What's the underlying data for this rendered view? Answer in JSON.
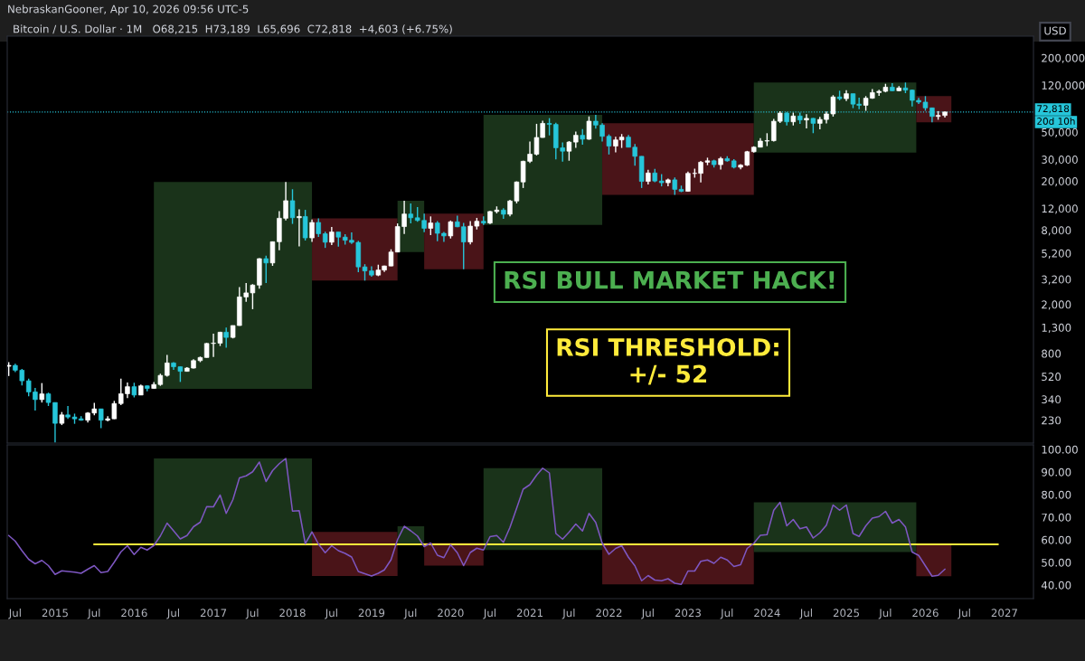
{
  "chart_data": [
    {
      "type": "candlestick",
      "title": "Bitcoin / U.S. Dollar · 1M   O68,215  H73,189  L65,696  C72,818  +4,603 (+6.75%)",
      "log": true,
      "tick_labels": "y",
      "annotations": [
        "NebraskanGooner, Apr 10, 2026 09:56 UTC-5",
        "RSI BULL MARKET HACK!",
        "RSI THRESHOLD:\n+/- 52",
        "USD",
        "20d 10h"
      ],
      "x": [
        "2014-06",
        "2014-07",
        "2014-08",
        "2014-09",
        "2014-10",
        "2014-11",
        "2014-12",
        "2015-01",
        "2015-02",
        "2015-03",
        "2015-04",
        "2015-05",
        "2015-06",
        "2015-07",
        "2015-08",
        "2015-09",
        "2015-10",
        "2015-11",
        "2015-12",
        "2016-01",
        "2016-02",
        "2016-03",
        "2016-04",
        "2016-05",
        "2016-06",
        "2016-07",
        "2016-08",
        "2016-09",
        "2016-10",
        "2016-11",
        "2016-12",
        "2017-01",
        "2017-02",
        "2017-03",
        "2017-04",
        "2017-05",
        "2017-06",
        "2017-07",
        "2017-08",
        "2017-09",
        "2017-10",
        "2017-11",
        "2017-12",
        "2018-01",
        "2018-02",
        "2018-03",
        "2018-04",
        "2018-05",
        "2018-06",
        "2018-07",
        "2018-08",
        "2018-09",
        "2018-10",
        "2018-11",
        "2018-12",
        "2019-01",
        "2019-02",
        "2019-03",
        "2019-04",
        "2019-05",
        "2019-06",
        "2019-07",
        "2019-08",
        "2019-09",
        "2019-10",
        "2019-11",
        "2019-12",
        "2020-01",
        "2020-02",
        "2020-03",
        "2020-04",
        "2020-05",
        "2020-06",
        "2020-07",
        "2020-08",
        "2020-09",
        "2020-10",
        "2020-11",
        "2020-12",
        "2021-01",
        "2021-02",
        "2021-03",
        "2021-04",
        "2021-05",
        "2021-06",
        "2021-07",
        "2021-08",
        "2021-09",
        "2021-10",
        "2021-11",
        "2021-12",
        "2022-01",
        "2022-02",
        "2022-03",
        "2022-04",
        "2022-05",
        "2022-06",
        "2022-07",
        "2022-08",
        "2022-09",
        "2022-10",
        "2022-11",
        "2022-12",
        "2023-01",
        "2023-02",
        "2023-03",
        "2023-04",
        "2023-05",
        "2023-06",
        "2023-07",
        "2023-08",
        "2023-09",
        "2023-10",
        "2023-11",
        "2023-12",
        "2024-01",
        "2024-02",
        "2024-03",
        "2024-04",
        "2024-05",
        "2024-06",
        "2024-07",
        "2024-08",
        "2024-09",
        "2024-10",
        "2024-11",
        "2024-12",
        "2025-01",
        "2025-02",
        "2025-03",
        "2025-04",
        "2025-05",
        "2025-06",
        "2025-07",
        "2025-08",
        "2025-09",
        "2025-10",
        "2025-11",
        "2025-12",
        "2026-01",
        "2026-02",
        "2026-03",
        "2026-04"
      ],
      "ohlc": [
        [
          630,
          680,
          525,
          640
        ],
        [
          640,
          660,
          565,
          585
        ],
        [
          585,
          600,
          440,
          480
        ],
        [
          480,
          500,
          360,
          390
        ],
        [
          390,
          420,
          275,
          338
        ],
        [
          338,
          460,
          320,
          376
        ],
        [
          376,
          385,
          300,
          320
        ],
        [
          320,
          320,
          152,
          217
        ],
        [
          217,
          268,
          210,
          254
        ],
        [
          254,
          300,
          236,
          244
        ],
        [
          244,
          260,
          215,
          236
        ],
        [
          236,
          248,
          228,
          230
        ],
        [
          230,
          268,
          220,
          263
        ],
        [
          263,
          318,
          252,
          284
        ],
        [
          284,
          285,
          198,
          230
        ],
        [
          230,
          248,
          225,
          236
        ],
        [
          236,
          330,
          235,
          314
        ],
        [
          314,
          500,
          305,
          377
        ],
        [
          377,
          465,
          348,
          430
        ],
        [
          430,
          463,
          352,
          368
        ],
        [
          368,
          448,
          367,
          437
        ],
        [
          437,
          440,
          394,
          416
        ],
        [
          416,
          470,
          413,
          448
        ],
        [
          448,
          548,
          437,
          531
        ],
        [
          531,
          780,
          520,
          670
        ],
        [
          670,
          680,
          590,
          624
        ],
        [
          624,
          626,
          470,
          573
        ],
        [
          573,
          620,
          570,
          609
        ],
        [
          609,
          720,
          605,
          700
        ],
        [
          700,
          755,
          680,
          742
        ],
        [
          742,
          974,
          740,
          964
        ],
        [
          964,
          1160,
          750,
          970
        ],
        [
          970,
          1200,
          920,
          1190
        ],
        [
          1190,
          1300,
          890,
          1080
        ],
        [
          1080,
          1350,
          1060,
          1348
        ],
        [
          1348,
          2760,
          1340,
          2300
        ],
        [
          2300,
          2980,
          2100,
          2480
        ],
        [
          2480,
          2920,
          1830,
          2870
        ],
        [
          2870,
          4740,
          2680,
          4700
        ],
        [
          4700,
          4980,
          2980,
          4340
        ],
        [
          4340,
          6470,
          4110,
          6450
        ],
        [
          6450,
          11400,
          5500,
          10000
        ],
        [
          10000,
          19666,
          9600,
          13880
        ],
        [
          13880,
          17200,
          9000,
          10100
        ],
        [
          10100,
          11800,
          5920,
          10330
        ],
        [
          10330,
          11700,
          6600,
          6930
        ],
        [
          6930,
          9770,
          6430,
          9240
        ],
        [
          9240,
          9990,
          7050,
          7490
        ],
        [
          7490,
          7780,
          5750,
          6390
        ],
        [
          6390,
          8500,
          6070,
          7730
        ],
        [
          7730,
          7760,
          5880,
          7030
        ],
        [
          7030,
          7410,
          6110,
          6630
        ],
        [
          6630,
          7680,
          6200,
          6370
        ],
        [
          6370,
          6550,
          3650,
          4030
        ],
        [
          4030,
          4240,
          3120,
          3740
        ],
        [
          3740,
          4070,
          3350,
          3460
        ],
        [
          3460,
          4200,
          3390,
          3800
        ],
        [
          3800,
          4130,
          3670,
          4100
        ],
        [
          4100,
          5600,
          4080,
          5320
        ],
        [
          5320,
          9080,
          5320,
          8560
        ],
        [
          8560,
          13880,
          7470,
          10820
        ],
        [
          10820,
          13200,
          9080,
          10090
        ],
        [
          10090,
          12330,
          9350,
          9600
        ],
        [
          9600,
          10920,
          7710,
          8290
        ],
        [
          8290,
          10350,
          7300,
          9150
        ],
        [
          9150,
          9500,
          6500,
          7550
        ],
        [
          7550,
          7750,
          6430,
          7190
        ],
        [
          7190,
          9580,
          6850,
          9350
        ],
        [
          9350,
          10500,
          8450,
          8530
        ],
        [
          8530,
          9180,
          3850,
          6420
        ],
        [
          6420,
          9470,
          6150,
          8630
        ],
        [
          8630,
          10070,
          8110,
          9450
        ],
        [
          9450,
          10380,
          8840,
          9140
        ],
        [
          9140,
          11450,
          8980,
          11340
        ],
        [
          11340,
          12480,
          10950,
          11650
        ],
        [
          11650,
          12090,
          9880,
          10780
        ],
        [
          10780,
          14100,
          10380,
          13800
        ],
        [
          13800,
          19900,
          13200,
          19700
        ],
        [
          19700,
          29300,
          17600,
          28990
        ],
        [
          28990,
          42000,
          28100,
          33100
        ],
        [
          33100,
          58350,
          32300,
          45200
        ],
        [
          45200,
          61800,
          45000,
          58800
        ],
        [
          58800,
          64900,
          47000,
          57700
        ],
        [
          57700,
          59600,
          30000,
          37300
        ],
        [
          37300,
          41300,
          28800,
          35000
        ],
        [
          35000,
          42300,
          29300,
          41500
        ],
        [
          41500,
          50500,
          37300,
          47100
        ],
        [
          47100,
          52900,
          39600,
          43800
        ],
        [
          43800,
          67000,
          43300,
          61300
        ],
        [
          61300,
          69000,
          53300,
          57000
        ],
        [
          57000,
          59100,
          42000,
          46200
        ],
        [
          46200,
          47900,
          32900,
          38500
        ],
        [
          38500,
          45800,
          34300,
          43200
        ],
        [
          43200,
          48200,
          37200,
          45500
        ],
        [
          45500,
          47400,
          37700,
          37700
        ],
        [
          37700,
          40000,
          26700,
          31800
        ],
        [
          31800,
          31900,
          17600,
          19900
        ],
        [
          19900,
          24700,
          18800,
          23300
        ],
        [
          23300,
          25200,
          19600,
          20050
        ],
        [
          20050,
          22800,
          18150,
          19420
        ],
        [
          19420,
          21000,
          18200,
          20490
        ],
        [
          20490,
          21450,
          15500,
          17160
        ],
        [
          17160,
          18400,
          16300,
          16540
        ],
        [
          16540,
          23950,
          16500,
          23120
        ],
        [
          23120,
          25250,
          21350,
          23140
        ],
        [
          23140,
          29200,
          19550,
          28470
        ],
        [
          28470,
          31000,
          26950,
          29240
        ],
        [
          29240,
          29850,
          25800,
          27220
        ],
        [
          27220,
          31400,
          24800,
          30470
        ],
        [
          30470,
          31800,
          28850,
          29230
        ],
        [
          29230,
          30200,
          25400,
          25930
        ],
        [
          25930,
          27500,
          24900,
          26960
        ],
        [
          26960,
          35200,
          26550,
          34650
        ],
        [
          34650,
          38400,
          34100,
          37720
        ],
        [
          37720,
          44700,
          37600,
          42280
        ],
        [
          42280,
          48970,
          38500,
          42580
        ],
        [
          42580,
          64000,
          41900,
          61200
        ],
        [
          61200,
          73800,
          59300,
          71300
        ],
        [
          71300,
          72800,
          56500,
          60600
        ],
        [
          60600,
          71900,
          56600,
          67500
        ],
        [
          67500,
          72000,
          58400,
          62700
        ],
        [
          62700,
          70000,
          53500,
          64600
        ],
        [
          64600,
          65100,
          49000,
          58900
        ],
        [
          58900,
          66500,
          52600,
          63300
        ],
        [
          63300,
          73600,
          58900,
          70200
        ],
        [
          70200,
          99600,
          66800,
          96400
        ],
        [
          96400,
          108300,
          90500,
          93400
        ],
        [
          93400,
          109400,
          89200,
          102400
        ],
        [
          102400,
          102500,
          78200,
          84300
        ],
        [
          84300,
          95000,
          76600,
          82500
        ],
        [
          82500,
          97900,
          74400,
          94200
        ],
        [
          94200,
          111900,
          93300,
          104600
        ],
        [
          104600,
          110500,
          98200,
          107100
        ],
        [
          107100,
          123200,
          105100,
          115700
        ],
        [
          115700,
          124400,
          107300,
          108200
        ],
        [
          108200,
          117900,
          107200,
          114000
        ],
        [
          114000,
          126200,
          103500,
          109500
        ],
        [
          109500,
          110600,
          80600,
          90400
        ],
        [
          90400,
          94600,
          84400,
          87500
        ],
        [
          87500,
          97900,
          74500,
          78600
        ],
        [
          78600,
          79000,
          60000,
          67000
        ],
        [
          67000,
          74000,
          63000,
          68215
        ],
        [
          68215,
          73189,
          65696,
          72818
        ]
      ],
      "colors": [
        "#ffffff",
        "#26c6da",
        "#26c6da",
        "#26c6da",
        "#26c6da",
        "#ffffff",
        "#26c6da",
        "#26c6da",
        "#ffffff",
        "#26c6da",
        "#26c6da",
        "#26c6da",
        "#ffffff",
        "#ffffff",
        "#26c6da",
        "#ffffff",
        "#ffffff",
        "#ffffff",
        "#ffffff",
        "#26c6da",
        "#ffffff",
        "#26c6da",
        "#ffffff",
        "#ffffff",
        "#ffffff",
        "#26c6da",
        "#26c6da",
        "#ffffff",
        "#ffffff",
        "#ffffff",
        "#ffffff",
        "#ffffff",
        "#ffffff",
        "#26c6da",
        "#ffffff",
        "#ffffff",
        "#ffffff",
        "#ffffff",
        "#ffffff",
        "#26c6da",
        "#ffffff",
        "#ffffff",
        "#ffffff",
        "#26c6da",
        "#ffffff",
        "#26c6da",
        "#ffffff",
        "#26c6da",
        "#26c6da",
        "#ffffff",
        "#26c6da",
        "#26c6da",
        "#26c6da",
        "#26c6da",
        "#26c6da",
        "#26c6da",
        "#ffffff",
        "#ffffff",
        "#ffffff",
        "#ffffff",
        "#ffffff",
        "#26c6da",
        "#26c6da",
        "#26c6da",
        "#ffffff",
        "#26c6da",
        "#26c6da",
        "#ffffff",
        "#26c6da",
        "#26c6da",
        "#ffffff",
        "#ffffff",
        "#26c6da",
        "#ffffff",
        "#ffffff",
        "#26c6da",
        "#ffffff",
        "#ffffff",
        "#ffffff",
        "#ffffff",
        "#ffffff",
        "#ffffff",
        "#26c6da",
        "#26c6da",
        "#26c6da",
        "#ffffff",
        "#ffffff",
        "#26c6da",
        "#ffffff",
        "#26c6da",
        "#26c6da",
        "#26c6da",
        "#ffffff",
        "#ffffff",
        "#26c6da",
        "#26c6da",
        "#26c6da",
        "#ffffff",
        "#26c6da",
        "#26c6da",
        "#ffffff",
        "#26c6da",
        "#26c6da",
        "#ffffff",
        "#ffffff",
        "#ffffff",
        "#ffffff",
        "#26c6da",
        "#ffffff",
        "#26c6da",
        "#26c6da",
        "#ffffff",
        "#ffffff",
        "#ffffff",
        "#ffffff",
        "#ffffff",
        "#ffffff",
        "#ffffff",
        "#26c6da",
        "#ffffff",
        "#26c6da",
        "#ffffff",
        "#26c6da",
        "#ffffff",
        "#ffffff",
        "#ffffff",
        "#26c6da",
        "#ffffff",
        "#26c6da",
        "#26c6da",
        "#ffffff",
        "#ffffff",
        "#ffffff",
        "#ffffff",
        "#26c6da",
        "#ffffff",
        "#26c6da",
        "#26c6da",
        "#26c6da",
        "#26c6da",
        "#26c6da",
        "#ffffff",
        "#ffffff"
      ],
      "xlim": [
        "2014-05-25",
        "2027-05-15"
      ],
      "ylim": [
        150,
        300000
      ],
      "yticks": [
        230,
        340,
        520,
        800,
        {
          "value": 1300,
          "label": "1,300"
        },
        {
          "value": 2000,
          "label": "2,000"
        },
        {
          "value": 3200,
          "label": "3,200"
        },
        {
          "value": 5200,
          "label": "5,200"
        },
        {
          "value": 8000,
          "label": "8,000"
        },
        {
          "value": 12000,
          "label": "12,000"
        },
        {
          "value": 20000,
          "label": "20,000"
        },
        {
          "value": 30000,
          "label": "30,000"
        },
        {
          "value": 50000,
          "label": "50,000"
        },
        {
          "value": 120000,
          "label": "120,000"
        },
        {
          "value": 200000,
          "label": "200,000"
        }
      ],
      "ref_lines": [
        {
          "axis": "y",
          "value": 72818,
          "label": "72,818",
          "color": "#26c6da",
          "line_style": "dotted"
        }
      ],
      "bands": [
        {
          "axis": "x",
          "from": "2016-04",
          "to": "2018-04",
          "color": "#1a331a"
        },
        {
          "axis": "x",
          "from": "2018-04",
          "to": "2019-05",
          "color": "#4a1418"
        },
        {
          "axis": "x",
          "from": "2019-05",
          "to": "2019-09",
          "color": "#1a331a"
        },
        {
          "axis": "x",
          "from": "2019-09",
          "to": "2020-06",
          "color": "#4a1418"
        },
        {
          "axis": "x",
          "from": "2020-06",
          "to": "2021-12",
          "color": "#1a331a"
        },
        {
          "axis": "x",
          "from": "2021-12",
          "to": "2023-11",
          "color": "#4a1418"
        },
        {
          "axis": "x",
          "from": "2023-11",
          "to": "2025-11-20",
          "color": "#1a331a"
        },
        {
          "axis": "x",
          "from": "2025-11-20",
          "to": "2026-05",
          "color": "#4a1418"
        }
      ]
    },
    {
      "type": "line",
      "xlim": [
        "2014-05-25",
        "2027-05-15"
      ],
      "ylim": [
        34,
        102
      ],
      "yticks": [
        {
          "value": 40,
          "label": "40.00"
        },
        {
          "value": 50,
          "label": "50.00"
        },
        {
          "value": 60,
          "label": "60.00"
        },
        {
          "value": 70,
          "label": "70.00"
        },
        {
          "value": 80,
          "label": "80.00"
        },
        {
          "value": 90,
          "label": "90.00"
        },
        {
          "value": 100,
          "label": "100.00"
        }
      ],
      "xticks": [
        {
          "value": "2014-07",
          "label": "Jul"
        },
        {
          "value": "2015-01",
          "label": "2015"
        },
        {
          "value": "2015-07",
          "label": "Jul"
        },
        {
          "value": "2016-01",
          "label": "2016"
        },
        {
          "value": "2016-07",
          "label": "Jul"
        },
        {
          "value": "2017-01",
          "label": "2017"
        },
        {
          "value": "2017-07",
          "label": "Jul"
        },
        {
          "value": "2018-01",
          "label": "2018"
        },
        {
          "value": "2018-07",
          "label": "Jul"
        },
        {
          "value": "2019-01",
          "label": "2019"
        },
        {
          "value": "2019-07",
          "label": "Jul"
        },
        {
          "value": "2020-01",
          "label": "2020"
        },
        {
          "value": "2020-07",
          "label": "Jul"
        },
        {
          "value": "2021-01",
          "label": "2021"
        },
        {
          "value": "2021-07",
          "label": "Jul"
        },
        {
          "value": "2022-01",
          "label": "2022"
        },
        {
          "value": "2022-07",
          "label": "Jul"
        },
        {
          "value": "2023-01",
          "label": "2023"
        },
        {
          "value": "2023-07",
          "label": "Jul"
        },
        {
          "value": "2024-01",
          "label": "2024"
        },
        {
          "value": "2024-07",
          "label": "Jul"
        },
        {
          "value": "2025-01",
          "label": "2025"
        },
        {
          "value": "2025-07",
          "label": "Jul"
        },
        {
          "value": "2026-01",
          "label": "2026"
        },
        {
          "value": "2026-07",
          "label": "Jul"
        },
        {
          "value": "2027-01",
          "label": "2027"
        }
      ],
      "series": [
        {
          "color": "#7e57c2",
          "x": [
            "2014-06",
            "2014-07",
            "2014-08",
            "2014-09",
            "2014-10",
            "2014-11",
            "2014-12",
            "2015-01",
            "2015-02",
            "2015-03",
            "2015-04",
            "2015-05",
            "2015-06",
            "2015-07",
            "2015-08",
            "2015-09",
            "2015-10",
            "2015-11",
            "2015-12",
            "2016-01",
            "2016-02",
            "2016-03",
            "2016-04",
            "2016-05",
            "2016-06",
            "2016-07",
            "2016-08",
            "2016-09",
            "2016-10",
            "2016-11",
            "2016-12",
            "2017-01",
            "2017-02",
            "2017-03",
            "2017-04",
            "2017-05",
            "2017-06",
            "2017-07",
            "2017-08",
            "2017-09",
            "2017-10",
            "2017-11",
            "2017-12",
            "2018-01",
            "2018-02",
            "2018-03",
            "2018-04",
            "2018-05",
            "2018-06",
            "2018-07",
            "2018-08",
            "2018-09",
            "2018-10",
            "2018-11",
            "2018-12",
            "2019-01",
            "2019-02",
            "2019-03",
            "2019-04",
            "2019-05",
            "2019-06",
            "2019-07",
            "2019-08",
            "2019-09",
            "2019-10",
            "2019-11",
            "2019-12",
            "2020-01",
            "2020-02",
            "2020-03",
            "2020-04",
            "2020-05",
            "2020-06",
            "2020-07",
            "2020-08",
            "2020-09",
            "2020-10",
            "2020-11",
            "2020-12",
            "2021-01",
            "2021-02",
            "2021-03",
            "2021-04",
            "2021-05",
            "2021-06",
            "2021-07",
            "2021-08",
            "2021-09",
            "2021-10",
            "2021-11",
            "2021-12",
            "2022-01",
            "2022-02",
            "2022-03",
            "2022-04",
            "2022-05",
            "2022-06",
            "2022-07",
            "2022-08",
            "2022-09",
            "2022-10",
            "2022-11",
            "2022-12",
            "2023-01",
            "2023-02",
            "2023-03",
            "2023-04",
            "2023-05",
            "2023-06",
            "2023-07",
            "2023-08",
            "2023-09",
            "2023-10",
            "2023-11",
            "2023-12",
            "2024-01",
            "2024-02",
            "2024-03",
            "2024-04",
            "2024-05",
            "2024-06",
            "2024-07",
            "2024-08",
            "2024-09",
            "2024-10",
            "2024-11",
            "2024-12",
            "2025-01",
            "2025-02",
            "2025-03",
            "2025-04",
            "2025-05",
            "2025-06",
            "2025-07",
            "2025-08",
            "2025-09",
            "2025-10",
            "2025-11",
            "2025-12",
            "2026-01",
            "2026-02",
            "2026-03",
            "2026-04"
          ],
          "values": [
            61.9,
            59.4,
            55.2,
            51.4,
            49.4,
            50.9,
            48.6,
            44.7,
            46.3,
            46.0,
            45.7,
            45.2,
            47.0,
            48.6,
            45.5,
            46.0,
            50.1,
            54.7,
            57.4,
            53.5,
            56.7,
            55.5,
            57.5,
            61.7,
            67.4,
            64.0,
            60.4,
            61.9,
            65.8,
            67.8,
            74.7,
            74.6,
            79.8,
            71.7,
            77.8,
            87.4,
            88.3,
            90.1,
            94.4,
            85.8,
            90.6,
            93.7,
            96.0,
            72.7,
            72.9,
            58.3,
            63.5,
            58.1,
            54.3,
            57.4,
            55.2,
            54.0,
            52.4,
            46.0,
            45.0,
            44.0,
            45.2,
            46.7,
            51.2,
            60.1,
            66.0,
            64.0,
            61.7,
            57.0,
            58.6,
            53.2,
            52.1,
            57.8,
            54.3,
            48.6,
            54.4,
            56.3,
            55.5,
            61.4,
            61.9,
            58.9,
            65.5,
            74.0,
            82.4,
            84.4,
            88.6,
            91.7,
            89.6,
            62.8,
            60.3,
            63.4,
            67.0,
            63.9,
            71.7,
            67.7,
            58.5,
            53.6,
            56.2,
            57.4,
            52.3,
            48.5,
            41.9,
            44.2,
            42.2,
            41.9,
            42.8,
            40.8,
            40.3,
            46.2,
            46.2,
            50.5,
            51.1,
            49.6,
            52.3,
            51.1,
            48.2,
            49.0,
            56.2,
            58.5,
            62.0,
            62.3,
            73.1,
            76.6,
            66.2,
            69.0,
            64.9,
            65.7,
            60.8,
            63.1,
            66.5,
            75.4,
            73.1,
            75.4,
            62.8,
            61.5,
            66.2,
            69.6,
            70.3,
            72.6,
            67.4,
            69.0,
            65.7,
            54.6,
            53.1,
            48.5,
            43.9,
            44.3,
            47.0
          ]
        },
        {
          "color": "#ffeb3b",
          "x": [
            "2015-07",
            "2026-12"
          ],
          "values": [
            58,
            58
          ]
        }
      ],
      "bands": [
        {
          "axis": "x",
          "from": "2016-04",
          "to": "2018-04",
          "color": "#1a331a"
        },
        {
          "axis": "x",
          "from": "2018-04",
          "to": "2019-05",
          "color": "#4a1418"
        },
        {
          "axis": "x",
          "from": "2019-05",
          "to": "2019-09",
          "color": "#1a331a"
        },
        {
          "axis": "x",
          "from": "2019-09",
          "to": "2020-06",
          "color": "#4a1418"
        },
        {
          "axis": "x",
          "from": "2020-06",
          "to": "2021-12",
          "color": "#1a331a"
        },
        {
          "axis": "x",
          "from": "2021-12",
          "to": "2023-11",
          "color": "#4a1418"
        },
        {
          "axis": "x",
          "from": "2023-11",
          "to": "2025-11-20",
          "color": "#1a331a"
        },
        {
          "axis": "x",
          "from": "2025-11-20",
          "to": "2026-05",
          "color": "#4a1418"
        }
      ]
    }
  ]
}
